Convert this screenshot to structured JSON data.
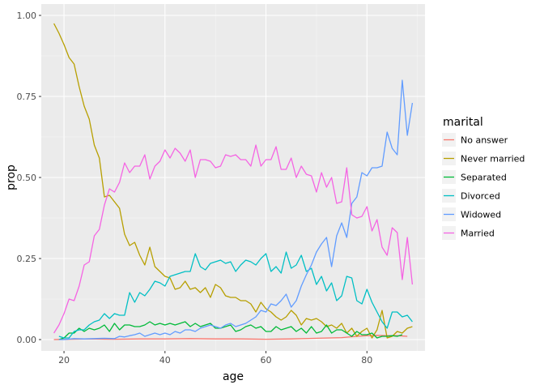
{
  "chart_data": {
    "type": "line",
    "xlabel": "age",
    "ylabel": "prop",
    "xlim": [
      15.5,
      91.5
    ],
    "ylim": [
      -0.035,
      1.035
    ],
    "x_ticks": [
      20,
      40,
      60,
      80
    ],
    "y_ticks": [
      0,
      0.25,
      0.5,
      0.75,
      1.0
    ],
    "x_tick_labels": [
      "20",
      "40",
      "60",
      "80"
    ],
    "y_tick_labels": [
      "0.00",
      "0.25",
      "0.50",
      "0.75",
      "1.00"
    ],
    "grid": true,
    "legend_title": "marital",
    "legend_position": "right",
    "series": [
      {
        "name": "No answer",
        "color": "#F8766D",
        "x": [
          18,
          25,
          30,
          35,
          40,
          45,
          50,
          55,
          60,
          65,
          70,
          75,
          78,
          80,
          82,
          84,
          86,
          88
        ],
        "y": [
          0.0,
          0.002,
          0.001,
          0.002,
          0.002,
          0.003,
          0.002,
          0.002,
          0.001,
          0.002,
          0.004,
          0.006,
          0.01,
          0.012,
          0.013,
          0.012,
          0.012,
          0.01
        ]
      },
      {
        "name": "Never married",
        "color": "#B79F00",
        "x": [
          18,
          19,
          20,
          21,
          22,
          23,
          24,
          25,
          26,
          27,
          28,
          29,
          30,
          31,
          32,
          33,
          34,
          35,
          36,
          37,
          38,
          39,
          40,
          41,
          42,
          43,
          44,
          45,
          46,
          47,
          48,
          49,
          50,
          51,
          52,
          53,
          54,
          55,
          56,
          57,
          58,
          59,
          60,
          61,
          62,
          63,
          64,
          65,
          66,
          67,
          68,
          69,
          70,
          71,
          72,
          73,
          74,
          75,
          76,
          77,
          78,
          79,
          80,
          81,
          82,
          83,
          84,
          85,
          86,
          87,
          88,
          89
        ],
        "y": [
          0.975,
          0.945,
          0.91,
          0.87,
          0.85,
          0.78,
          0.72,
          0.68,
          0.6,
          0.56,
          0.44,
          0.445,
          0.425,
          0.405,
          0.325,
          0.29,
          0.3,
          0.26,
          0.23,
          0.285,
          0.225,
          0.21,
          0.195,
          0.19,
          0.155,
          0.16,
          0.18,
          0.155,
          0.16,
          0.145,
          0.16,
          0.13,
          0.17,
          0.16,
          0.135,
          0.13,
          0.13,
          0.12,
          0.12,
          0.11,
          0.085,
          0.115,
          0.095,
          0.085,
          0.07,
          0.06,
          0.07,
          0.09,
          0.075,
          0.045,
          0.065,
          0.06,
          0.065,
          0.055,
          0.04,
          0.045,
          0.035,
          0.05,
          0.02,
          0.035,
          0.01,
          0.025,
          0.035,
          0.005,
          0.03,
          0.09,
          0.005,
          0.01,
          0.025,
          0.02,
          0.035,
          0.04
        ]
      },
      {
        "name": "Separated",
        "color": "#00BA38",
        "x": [
          19,
          20,
          21,
          22,
          23,
          24,
          25,
          26,
          27,
          28,
          29,
          30,
          31,
          32,
          33,
          34,
          35,
          36,
          37,
          38,
          39,
          40,
          41,
          42,
          43,
          44,
          45,
          46,
          47,
          48,
          49,
          50,
          51,
          52,
          53,
          54,
          55,
          56,
          57,
          58,
          59,
          60,
          61,
          62,
          63,
          64,
          65,
          66,
          67,
          68,
          69,
          70,
          71,
          72,
          73,
          74,
          75,
          76,
          77,
          78,
          79,
          80,
          81,
          82,
          83,
          84,
          85,
          86,
          87
        ],
        "y": [
          0.0,
          0.005,
          0.02,
          0.02,
          0.035,
          0.025,
          0.035,
          0.03,
          0.035,
          0.045,
          0.025,
          0.05,
          0.03,
          0.045,
          0.045,
          0.04,
          0.04,
          0.045,
          0.055,
          0.045,
          0.05,
          0.045,
          0.05,
          0.045,
          0.05,
          0.055,
          0.04,
          0.05,
          0.04,
          0.045,
          0.05,
          0.035,
          0.035,
          0.04,
          0.045,
          0.025,
          0.03,
          0.04,
          0.045,
          0.035,
          0.04,
          0.025,
          0.025,
          0.04,
          0.03,
          0.035,
          0.04,
          0.025,
          0.035,
          0.02,
          0.04,
          0.02,
          0.025,
          0.045,
          0.02,
          0.03,
          0.03,
          0.02,
          0.01,
          0.025,
          0.015,
          0.015,
          0.02,
          0.005,
          0.01,
          0.01,
          0.012,
          0.01,
          0.015
        ]
      },
      {
        "name": "Divorced",
        "color": "#00BFC4",
        "x": [
          19,
          20,
          21,
          22,
          23,
          24,
          25,
          26,
          27,
          28,
          29,
          30,
          31,
          32,
          33,
          34,
          35,
          36,
          37,
          38,
          39,
          40,
          41,
          42,
          43,
          44,
          45,
          46,
          47,
          48,
          49,
          50,
          51,
          52,
          53,
          54,
          55,
          56,
          57,
          58,
          59,
          60,
          61,
          62,
          63,
          64,
          65,
          66,
          67,
          68,
          69,
          70,
          71,
          72,
          73,
          74,
          75,
          76,
          77,
          78,
          79,
          80,
          81,
          82,
          83,
          84,
          85,
          86,
          87,
          88,
          89
        ],
        "y": [
          0.01,
          0.005,
          0.005,
          0.025,
          0.03,
          0.03,
          0.045,
          0.055,
          0.06,
          0.08,
          0.065,
          0.08,
          0.075,
          0.075,
          0.145,
          0.115,
          0.145,
          0.135,
          0.155,
          0.18,
          0.175,
          0.165,
          0.195,
          0.2,
          0.205,
          0.21,
          0.21,
          0.265,
          0.225,
          0.215,
          0.235,
          0.24,
          0.245,
          0.235,
          0.24,
          0.21,
          0.23,
          0.245,
          0.24,
          0.23,
          0.25,
          0.265,
          0.21,
          0.225,
          0.205,
          0.27,
          0.22,
          0.23,
          0.26,
          0.21,
          0.22,
          0.17,
          0.195,
          0.15,
          0.175,
          0.12,
          0.135,
          0.195,
          0.19,
          0.12,
          0.11,
          0.155,
          0.115,
          0.085,
          0.055,
          0.035,
          0.085,
          0.085,
          0.07,
          0.075,
          0.055
        ]
      },
      {
        "name": "Widowed",
        "color": "#619CFF",
        "x": [
          19,
          20,
          22,
          24,
          26,
          28,
          30,
          31,
          32,
          33,
          34,
          35,
          36,
          37,
          38,
          39,
          40,
          41,
          42,
          43,
          44,
          45,
          46,
          47,
          48,
          49,
          50,
          51,
          52,
          53,
          54,
          55,
          56,
          57,
          58,
          59,
          60,
          61,
          62,
          63,
          64,
          65,
          66,
          67,
          68,
          69,
          70,
          71,
          72,
          73,
          74,
          75,
          76,
          77,
          78,
          79,
          80,
          81,
          82,
          83,
          84,
          85,
          86,
          87,
          88,
          89
        ],
        "y": [
          0.0,
          0.0,
          0.003,
          0.002,
          0.003,
          0.004,
          0.003,
          0.01,
          0.008,
          0.012,
          0.015,
          0.02,
          0.01,
          0.015,
          0.02,
          0.015,
          0.02,
          0.015,
          0.025,
          0.02,
          0.03,
          0.03,
          0.025,
          0.035,
          0.04,
          0.045,
          0.04,
          0.035,
          0.045,
          0.05,
          0.04,
          0.045,
          0.05,
          0.06,
          0.07,
          0.09,
          0.085,
          0.11,
          0.105,
          0.12,
          0.14,
          0.1,
          0.12,
          0.165,
          0.2,
          0.23,
          0.27,
          0.295,
          0.315,
          0.225,
          0.32,
          0.36,
          0.315,
          0.42,
          0.44,
          0.515,
          0.505,
          0.53,
          0.53,
          0.535,
          0.64,
          0.59,
          0.57,
          0.8,
          0.63,
          0.73
        ]
      },
      {
        "name": "Married",
        "color": "#F564E3",
        "x": [
          18,
          19,
          20,
          21,
          22,
          23,
          24,
          25,
          26,
          27,
          28,
          29,
          30,
          31,
          32,
          33,
          34,
          35,
          36,
          37,
          38,
          39,
          40,
          41,
          42,
          43,
          44,
          45,
          46,
          47,
          48,
          49,
          50,
          51,
          52,
          53,
          54,
          55,
          56,
          57,
          58,
          59,
          60,
          61,
          62,
          63,
          64,
          65,
          66,
          67,
          68,
          69,
          70,
          71,
          72,
          73,
          74,
          75,
          76,
          77,
          78,
          79,
          80,
          81,
          82,
          83,
          84,
          85,
          86,
          87,
          88,
          89
        ],
        "y": [
          0.02,
          0.045,
          0.08,
          0.125,
          0.12,
          0.165,
          0.23,
          0.24,
          0.32,
          0.34,
          0.415,
          0.465,
          0.455,
          0.485,
          0.545,
          0.515,
          0.535,
          0.535,
          0.57,
          0.495,
          0.535,
          0.55,
          0.585,
          0.56,
          0.59,
          0.575,
          0.55,
          0.585,
          0.5,
          0.555,
          0.555,
          0.55,
          0.53,
          0.535,
          0.57,
          0.565,
          0.57,
          0.555,
          0.555,
          0.535,
          0.6,
          0.535,
          0.555,
          0.555,
          0.595,
          0.525,
          0.525,
          0.56,
          0.5,
          0.535,
          0.51,
          0.505,
          0.455,
          0.515,
          0.47,
          0.5,
          0.42,
          0.425,
          0.53,
          0.385,
          0.375,
          0.38,
          0.41,
          0.335,
          0.37,
          0.285,
          0.26,
          0.345,
          0.33,
          0.185,
          0.315,
          0.17
        ]
      }
    ]
  }
}
